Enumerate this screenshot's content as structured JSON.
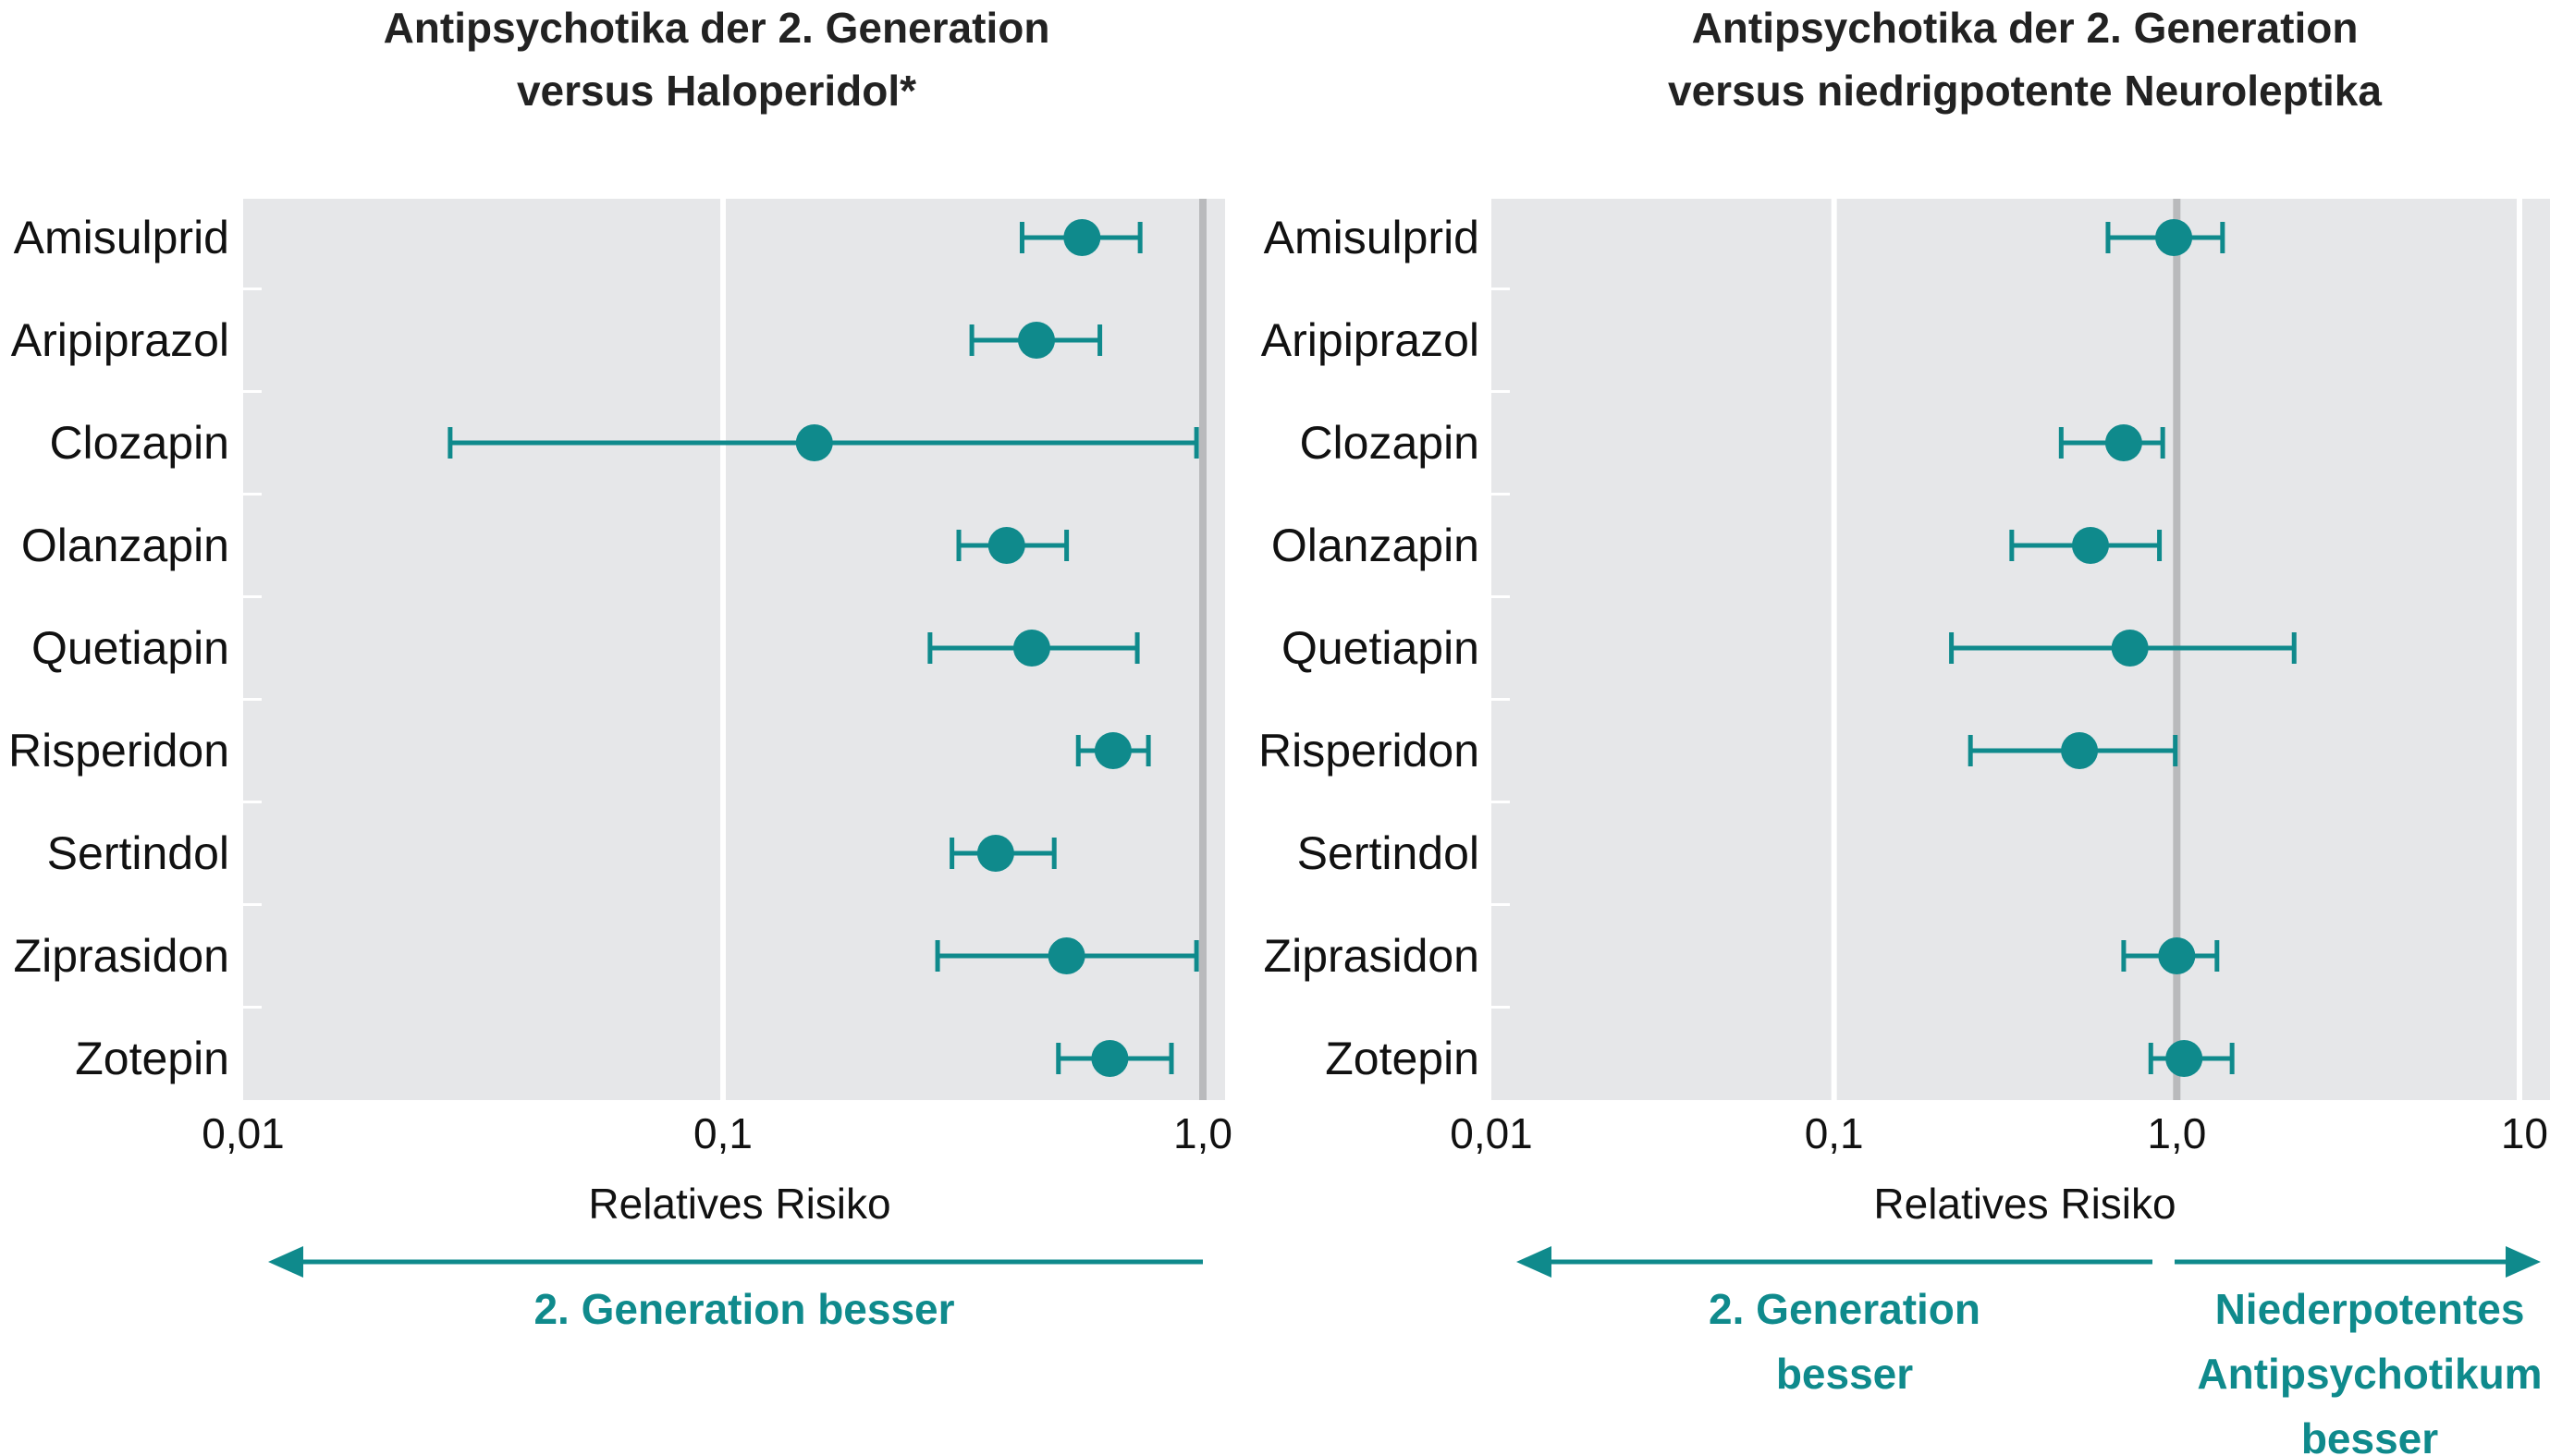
{
  "colors": {
    "accent": "#0f8a8c",
    "plot_bg": "#e6e7e9",
    "reference_line": "#b9babc",
    "grid_line": "#ffffff"
  },
  "chart_data": [
    {
      "type": "forest",
      "title": [
        "Antipsychotika der 2. Generation",
        "versus Haloperidol*"
      ],
      "categories": [
        "Amisulprid",
        "Aripiprazol",
        "Clozapin",
        "Olanzapin",
        "Quetiapin",
        "Risperidon",
        "Sertindol",
        "Ziprasidon",
        "Zotepin"
      ],
      "estimate": [
        0.56,
        0.45,
        0.155,
        0.39,
        0.44,
        0.65,
        0.37,
        0.52,
        0.64
      ],
      "ci_low": [
        0.42,
        0.33,
        0.027,
        0.31,
        0.27,
        0.55,
        0.3,
        0.28,
        0.5
      ],
      "ci_high": [
        0.74,
        0.61,
        0.97,
        0.52,
        0.73,
        0.77,
        0.49,
        0.97,
        0.86
      ],
      "xscale": "log",
      "xlim": [
        0.01,
        1.0
      ],
      "xticks": [
        0.01,
        0.1,
        1.0
      ],
      "xtick_labels": [
        "0,01",
        "0,1",
        "1,0"
      ],
      "xlabel": "Relatives Risiko",
      "reference_line": 1.0,
      "direction_labels": {
        "left": [
          "2. Generation besser"
        ]
      }
    },
    {
      "type": "forest",
      "title": [
        "Antipsychotika der 2. Generation",
        "versus niedrigpotente Neuroleptika"
      ],
      "categories": [
        "Amisulprid",
        "Aripiprazol",
        "Clozapin",
        "Olanzapin",
        "Quetiapin",
        "Risperidon",
        "Sertindol",
        "Ziprasidon",
        "Zotepin"
      ],
      "estimate": [
        0.98,
        null,
        0.7,
        0.56,
        0.73,
        0.52,
        null,
        1.0,
        1.05
      ],
      "ci_low": [
        0.63,
        null,
        0.46,
        0.33,
        0.22,
        0.25,
        null,
        0.7,
        0.84
      ],
      "ci_high": [
        1.36,
        null,
        0.91,
        0.89,
        2.2,
        0.99,
        null,
        1.31,
        1.45
      ],
      "xscale": "log",
      "xlim": [
        0.01,
        10
      ],
      "xticks": [
        0.01,
        0.1,
        1.0,
        10
      ],
      "xtick_labels": [
        "0,01",
        "0,1",
        "1,0",
        "10"
      ],
      "xlabel": "Relatives Risiko",
      "reference_line": 1.0,
      "direction_labels": {
        "left": [
          "2. Generation",
          "besser"
        ],
        "right": [
          "Niederpotentes",
          "Antipsychotikum",
          "besser"
        ]
      }
    }
  ]
}
